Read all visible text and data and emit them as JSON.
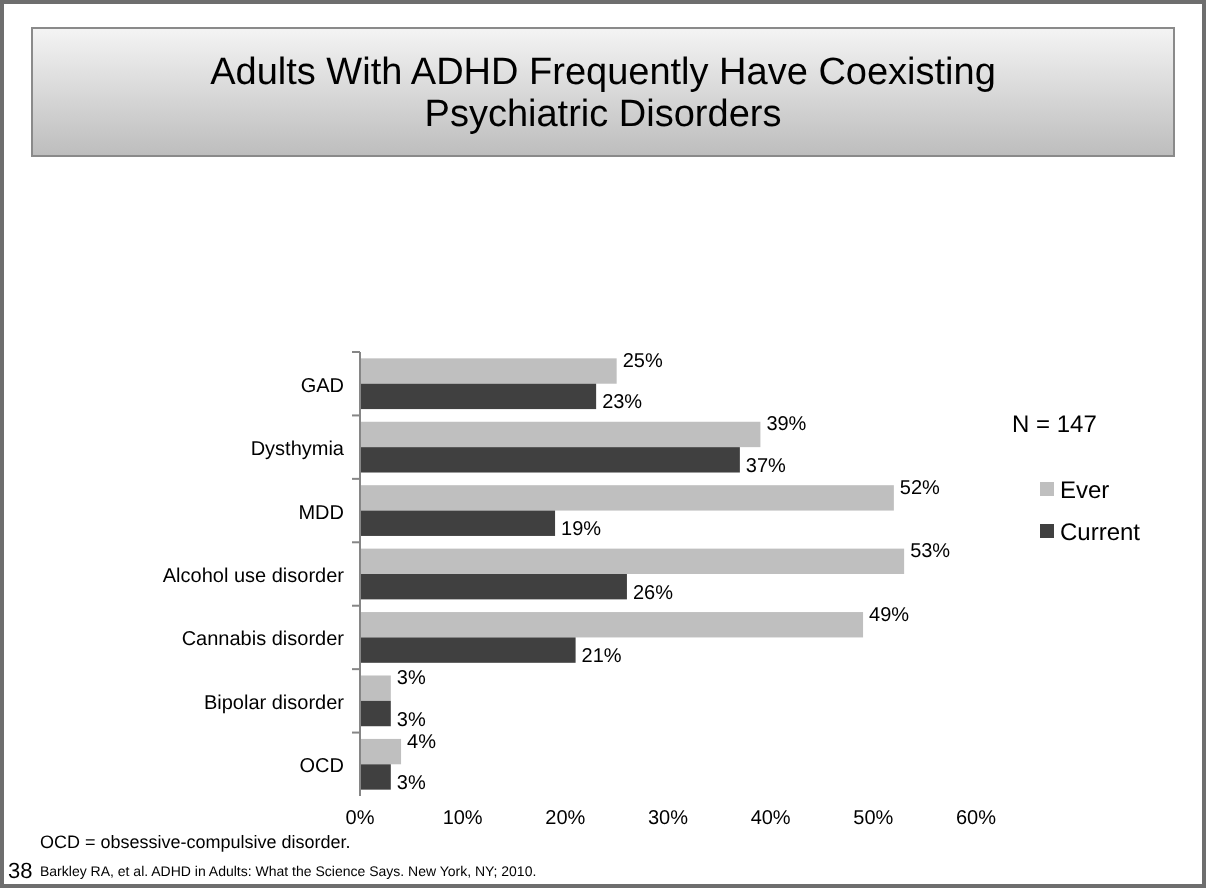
{
  "chart_data": {
    "type": "bar",
    "orientation": "horizontal",
    "title": "Adults With ADHD Frequently Have Coexisting Psychiatric Disorders",
    "categories": [
      "GAD",
      "Dysthymia",
      "MDD",
      "Alcohol use disorder",
      "Cannabis disorder",
      "Bipolar disorder",
      "OCD"
    ],
    "series": [
      {
        "name": "Ever",
        "color": "#bfbfbf",
        "values": [
          25,
          39,
          52,
          53,
          49,
          3,
          4
        ],
        "value_labels": [
          "25%",
          "39%",
          "52%",
          "53%",
          "49%",
          "3%",
          "4%"
        ]
      },
      {
        "name": "Current",
        "color": "#404040",
        "values": [
          23,
          37,
          19,
          26,
          21,
          3,
          3
        ],
        "value_labels": [
          "23%",
          "37%",
          "19%",
          "26%",
          "21%",
          "3%",
          "3%"
        ]
      }
    ],
    "xlim": [
      0,
      60
    ],
    "xticks": [
      {
        "value": 0,
        "label": "0%"
      },
      {
        "value": 10,
        "label": "10%"
      },
      {
        "value": 20,
        "label": "20%"
      },
      {
        "value": 30,
        "label": "30%"
      },
      {
        "value": 40,
        "label": "40%"
      },
      {
        "value": 50,
        "label": "50%"
      },
      {
        "value": 60,
        "label": "60%"
      }
    ],
    "legend": "right",
    "grid": false,
    "annotations": [
      "N = 147",
      "OCD = obsessive-compulsive disorder.",
      "38",
      "Barkley RA, et al. ADHD in Adults: What the Science Says. New York, NY; 2010."
    ]
  }
}
